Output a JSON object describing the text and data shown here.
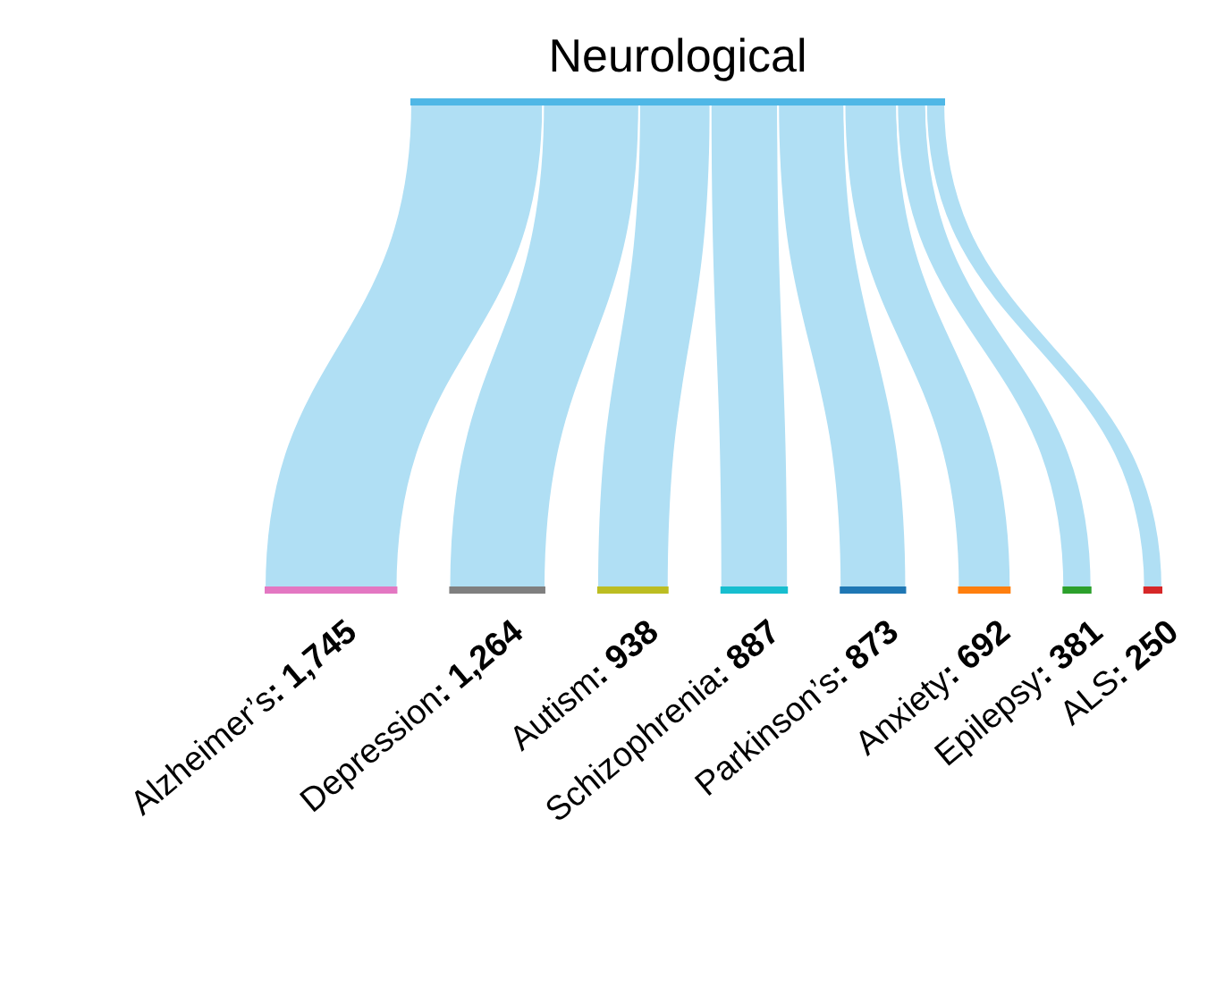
{
  "chart_data": {
    "type": "other",
    "title": "Neurological",
    "color": "#4fb7e6",
    "categories": [
      "Alzheimer’s",
      "Depression",
      "Autism",
      "Schizophrenia",
      "Parkinson’s",
      "Anxiety",
      "Epilepsy",
      "ALS"
    ],
    "values": [
      1745,
      1264,
      938,
      887,
      873,
      692,
      381,
      250
    ],
    "value_labels": [
      ": 1,745",
      ": 1,264",
      ": 938",
      ": 887",
      ": 873",
      ": 692",
      ": 381",
      ": 250"
    ],
    "colors": [
      "#e377c2",
      "#7f7f7f",
      "#bcbd22",
      "#17becf",
      "#1f77b4",
      "#ff7f0e",
      "#2ca02c",
      "#d62728"
    ]
  }
}
